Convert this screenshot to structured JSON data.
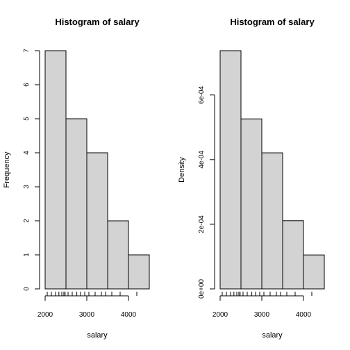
{
  "chart_data": [
    {
      "type": "bar",
      "title": "Histogram of salary",
      "xlabel": "salary",
      "ylabel": "Frequency",
      "bins": [
        [
          2000,
          2500
        ],
        [
          2500,
          3000
        ],
        [
          3000,
          3500
        ],
        [
          3500,
          4000
        ],
        [
          4000,
          4500
        ]
      ],
      "values": [
        7,
        5,
        4,
        2,
        1
      ],
      "xlim": [
        2000,
        4500
      ],
      "ylim": [
        0,
        7
      ],
      "x_ticks": [
        2000,
        3000,
        4000
      ],
      "x_tick_labels": [
        "2000",
        "3000",
        "4000"
      ],
      "y_ticks": [
        0,
        1,
        2,
        3,
        4,
        5,
        6,
        7
      ],
      "y_tick_labels": [
        "0",
        "1",
        "2",
        "3",
        "4",
        "5",
        "6",
        "7"
      ],
      "rug": [
        2050,
        2150,
        2250,
        2330,
        2400,
        2450,
        2480,
        2550,
        2650,
        2760,
        2850,
        2950,
        3050,
        3200,
        3350,
        3450,
        3600,
        3800,
        4200
      ],
      "fill": "#d3d3d3",
      "grid": false
    },
    {
      "type": "bar",
      "title": "Histogram of salary",
      "xlabel": "salary",
      "ylabel": "Density",
      "bins": [
        [
          2000,
          2500
        ],
        [
          2500,
          3000
        ],
        [
          3000,
          3500
        ],
        [
          3500,
          4000
        ],
        [
          4000,
          4500
        ]
      ],
      "values": [
        0.000737,
        0.000526,
        0.000421,
        0.000211,
        0.000105
      ],
      "xlim": [
        2000,
        4500
      ],
      "ylim": [
        0,
        0.000737
      ],
      "x_ticks": [
        2000,
        3000,
        4000
      ],
      "x_tick_labels": [
        "2000",
        "3000",
        "4000"
      ],
      "y_ticks": [
        0,
        0.0002,
        0.0004,
        0.0006
      ],
      "y_tick_labels": [
        "0e+00",
        "2e-04",
        "4e-04",
        "6e-04"
      ],
      "rug": [
        2050,
        2150,
        2250,
        2330,
        2400,
        2450,
        2480,
        2550,
        2650,
        2760,
        2850,
        2950,
        3050,
        3200,
        3350,
        3450,
        3600,
        3800,
        4200
      ],
      "fill": "#d3d3d3",
      "grid": false
    }
  ]
}
